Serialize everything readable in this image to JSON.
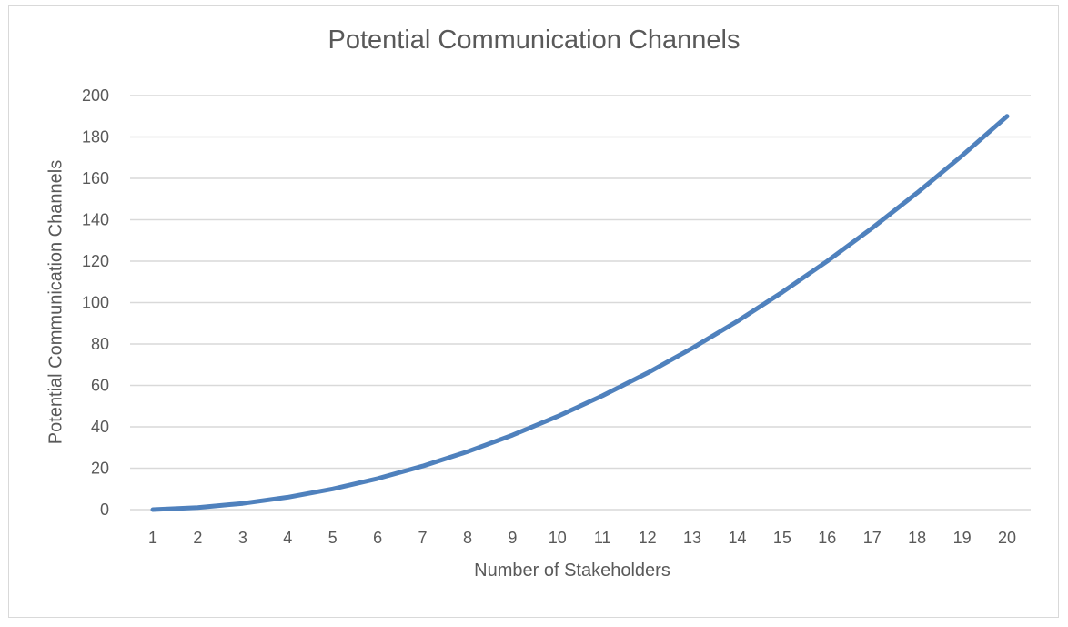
{
  "chart_data": {
    "type": "line",
    "title": "Potential Communication Channels",
    "xlabel": "Number of Stakeholders",
    "ylabel": "Potential Communication Channels",
    "categories": [
      "1",
      "2",
      "3",
      "4",
      "5",
      "6",
      "7",
      "8",
      "9",
      "10",
      "11",
      "12",
      "13",
      "14",
      "15",
      "16",
      "17",
      "18",
      "19",
      "20"
    ],
    "series": [
      {
        "name": "Potential Communication Channels",
        "color": "#4f81bd",
        "values": [
          0,
          1,
          3,
          6,
          10,
          15,
          21,
          28,
          36,
          45,
          55,
          66,
          78,
          91,
          105,
          120,
          136,
          153,
          171,
          190
        ]
      }
    ],
    "ylim": [
      0,
      200
    ],
    "yticks": [
      0,
      20,
      40,
      60,
      80,
      100,
      120,
      140,
      160,
      180,
      200
    ],
    "grid": true,
    "legend": "none",
    "colors": {
      "line": "#4f81bd",
      "grid": "#d9d9d9",
      "text": "#595959",
      "border": "#d9d9d9"
    }
  }
}
